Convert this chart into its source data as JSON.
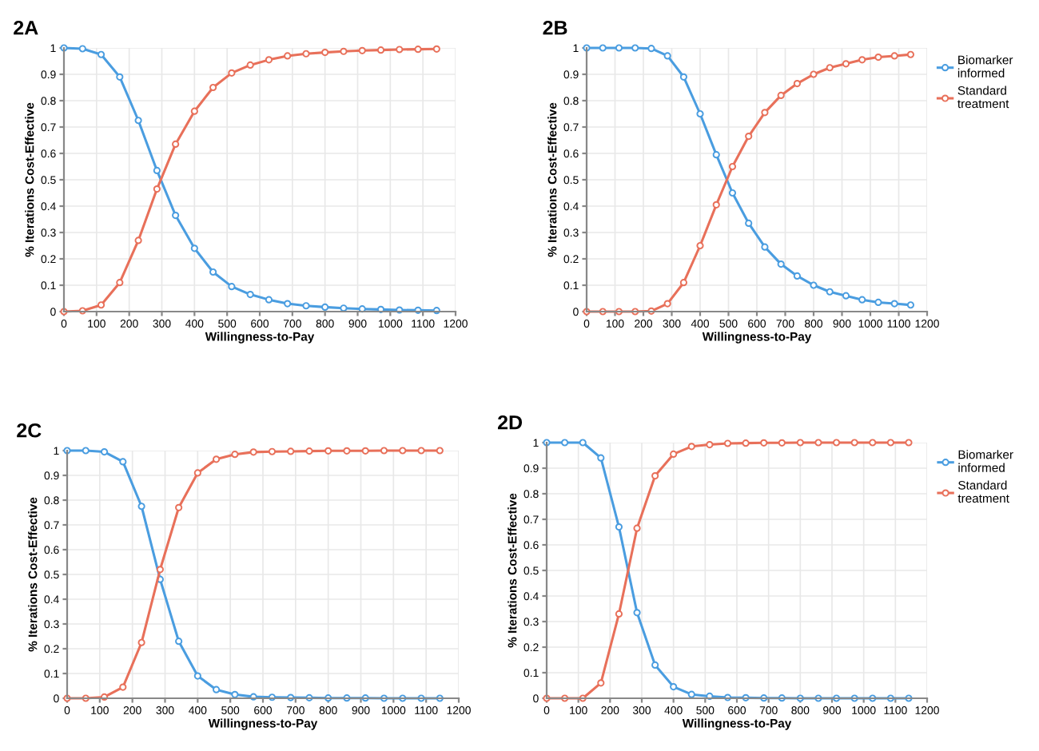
{
  "chart_data": [
    {
      "type": "line",
      "title": "2A",
      "xlabel": "Willingness-to-Pay",
      "ylabel": "% Iterations Cost-Effective",
      "x": [
        0,
        57,
        114,
        171,
        228,
        285,
        342,
        400,
        457,
        514,
        571,
        628,
        685,
        742,
        800,
        857,
        914,
        971,
        1028,
        1085,
        1142
      ],
      "xlim": [
        0,
        1200
      ],
      "xticks": [
        0,
        100,
        200,
        300,
        400,
        500,
        600,
        700,
        800,
        900,
        1000,
        1100,
        1200
      ],
      "ylim": [
        0,
        1
      ],
      "yticks": [
        0,
        0.1,
        0.2,
        0.3,
        0.4,
        0.5,
        0.6,
        0.7,
        0.8,
        0.9,
        1
      ],
      "grid": true,
      "marker": "circle",
      "legend": false,
      "series": [
        {
          "color": "#4a9de0",
          "values": [
            1,
            0.997,
            0.975,
            0.89,
            0.725,
            0.535,
            0.365,
            0.24,
            0.15,
            0.095,
            0.065,
            0.045,
            0.03,
            0.022,
            0.017,
            0.013,
            0.01,
            0.008,
            0.006,
            0.005,
            0.004
          ]
        },
        {
          "color": "#e8705a",
          "values": [
            0,
            0.003,
            0.025,
            0.11,
            0.27,
            0.465,
            0.635,
            0.76,
            0.85,
            0.905,
            0.935,
            0.955,
            0.97,
            0.978,
            0.983,
            0.987,
            0.99,
            0.992,
            0.994,
            0.995,
            0.996
          ]
        }
      ]
    },
    {
      "type": "line",
      "title": "2B",
      "xlabel": "Willingness-to-Pay",
      "ylabel": "% Iterations Cost-Effective",
      "x": [
        0,
        57,
        114,
        171,
        228,
        285,
        342,
        400,
        457,
        514,
        571,
        628,
        685,
        742,
        800,
        857,
        914,
        971,
        1028,
        1085,
        1142
      ],
      "xlim": [
        0,
        1200
      ],
      "xticks": [
        0,
        100,
        200,
        300,
        400,
        500,
        600,
        700,
        800,
        900,
        1000,
        1100,
        1200
      ],
      "ylim": [
        0,
        1
      ],
      "yticks": [
        0,
        0.1,
        0.2,
        0.3,
        0.4,
        0.5,
        0.6,
        0.7,
        0.8,
        0.9,
        1
      ],
      "grid": true,
      "marker": "circle",
      "legend": "right",
      "series": [
        {
          "name": "Biomarker informed",
          "color": "#4a9de0",
          "values": [
            1,
            1,
            1,
            1,
            0.998,
            0.97,
            0.89,
            0.75,
            0.595,
            0.45,
            0.335,
            0.245,
            0.18,
            0.135,
            0.1,
            0.075,
            0.06,
            0.045,
            0.035,
            0.03,
            0.025
          ]
        },
        {
          "name": "Standard treatment",
          "color": "#e8705a",
          "values": [
            0,
            0,
            0,
            0,
            0.002,
            0.03,
            0.11,
            0.25,
            0.405,
            0.55,
            0.665,
            0.755,
            0.82,
            0.865,
            0.9,
            0.925,
            0.94,
            0.955,
            0.965,
            0.97,
            0.975
          ]
        }
      ]
    },
    {
      "type": "line",
      "title": "2C",
      "xlabel": "Willingness-to-Pay",
      "ylabel": "% Iterations Cost-Effective",
      "x": [
        0,
        57,
        114,
        171,
        228,
        285,
        342,
        400,
        457,
        514,
        571,
        628,
        685,
        742,
        800,
        857,
        914,
        971,
        1028,
        1085,
        1142
      ],
      "xlim": [
        0,
        1200
      ],
      "xticks": [
        0,
        100,
        200,
        300,
        400,
        500,
        600,
        700,
        800,
        900,
        1000,
        1100,
        1200
      ],
      "ylim": [
        0,
        1
      ],
      "yticks": [
        0,
        0.1,
        0.2,
        0.3,
        0.4,
        0.5,
        0.6,
        0.7,
        0.8,
        0.9,
        1
      ],
      "grid": true,
      "marker": "circle",
      "legend": false,
      "series": [
        {
          "color": "#4a9de0",
          "values": [
            1,
            1,
            0.995,
            0.955,
            0.775,
            0.48,
            0.23,
            0.09,
            0.035,
            0.015,
            0.006,
            0.004,
            0.003,
            0.002,
            0.001,
            0.001,
            0.001,
            0,
            0,
            0,
            0
          ]
        },
        {
          "color": "#e8705a",
          "values": [
            0,
            0,
            0.005,
            0.045,
            0.225,
            0.52,
            0.77,
            0.91,
            0.965,
            0.985,
            0.994,
            0.996,
            0.997,
            0.998,
            0.999,
            0.999,
            0.999,
            1,
            1,
            1,
            1
          ]
        }
      ]
    },
    {
      "type": "line",
      "title": "2D",
      "xlabel": "Willingness-to-Pay",
      "ylabel": "% Iterations Cost-Effective",
      "x": [
        0,
        57,
        114,
        171,
        228,
        285,
        342,
        400,
        457,
        514,
        571,
        628,
        685,
        742,
        800,
        857,
        914,
        971,
        1028,
        1085,
        1142
      ],
      "xlim": [
        0,
        1200
      ],
      "xticks": [
        0,
        100,
        200,
        300,
        400,
        500,
        600,
        700,
        800,
        900,
        1000,
        1100,
        1200
      ],
      "ylim": [
        0,
        1
      ],
      "yticks": [
        0,
        0.1,
        0.2,
        0.3,
        0.4,
        0.5,
        0.6,
        0.7,
        0.8,
        0.9,
        1
      ],
      "grid": true,
      "marker": "circle",
      "legend": "right",
      "series": [
        {
          "name": "Biomarker informed",
          "color": "#4a9de0",
          "values": [
            1,
            1,
            1,
            0.94,
            0.67,
            0.335,
            0.13,
            0.045,
            0.015,
            0.008,
            0.003,
            0.002,
            0.001,
            0.001,
            0,
            0,
            0,
            0,
            0,
            0,
            0
          ]
        },
        {
          "name": "Standard treatment",
          "color": "#e8705a",
          "values": [
            0,
            0,
            0,
            0.06,
            0.33,
            0.665,
            0.87,
            0.955,
            0.985,
            0.992,
            0.997,
            0.998,
            0.999,
            0.999,
            1,
            1,
            1,
            1,
            1,
            1,
            1
          ]
        }
      ]
    }
  ]
}
